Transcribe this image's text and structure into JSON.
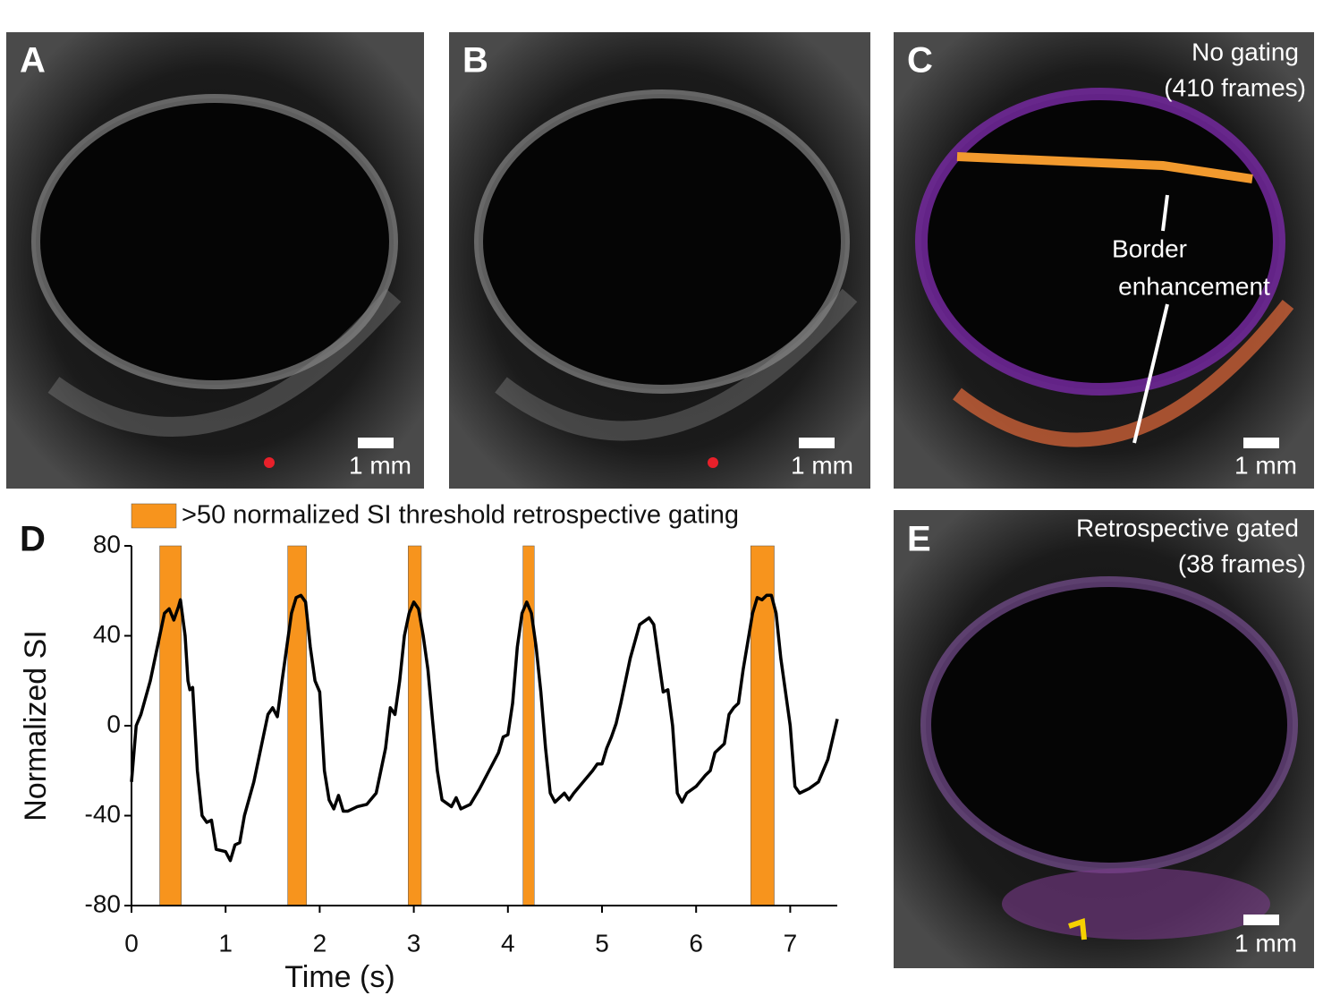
{
  "panels": [
    {
      "label": "A",
      "scale": "1 mm"
    },
    {
      "label": "B",
      "scale": "1 mm"
    },
    {
      "label": "C",
      "caption": [
        "No gating",
        "(410 frames)"
      ],
      "annotation": [
        "Border",
        "enhancement"
      ],
      "scale": "1 mm"
    },
    {
      "label": "E",
      "caption": [
        "Retrospective gated",
        "(38 frames)"
      ],
      "scale": "1 mm"
    }
  ],
  "chart_data": {
    "type": "line",
    "label": "D",
    "xlabel": "Time (s)",
    "ylabel": "Normalized SI",
    "xlim": [
      0,
      7.5
    ],
    "xticks": [
      0,
      1,
      2,
      3,
      4,
      5,
      6,
      7
    ],
    "ylim": [
      -80,
      80
    ],
    "yticks": [
      -80,
      -40,
      0,
      40,
      80
    ],
    "color": "#000000",
    "gating": {
      "name": ">50 normalized SI threshold retrospective gating",
      "color": "#f7941d",
      "starts": [
        0.3,
        1.66,
        2.94,
        4.16,
        6.58
      ],
      "ends": [
        0.53,
        1.86,
        3.08,
        4.28,
        6.83
      ]
    },
    "x": [
      0,
      0.05,
      0.1,
      0.2,
      0.3,
      0.35,
      0.4,
      0.45,
      0.5,
      0.52,
      0.57,
      0.6,
      0.62,
      0.65,
      0.7,
      0.75,
      0.8,
      0.85,
      0.9,
      1.0,
      1.05,
      1.1,
      1.15,
      1.2,
      1.3,
      1.4,
      1.45,
      1.5,
      1.55,
      1.6,
      1.7,
      1.75,
      1.8,
      1.85,
      1.9,
      1.95,
      2.0,
      2.05,
      2.1,
      2.15,
      2.2,
      2.25,
      2.3,
      2.4,
      2.5,
      2.6,
      2.7,
      2.75,
      2.8,
      2.85,
      2.9,
      2.95,
      3.0,
      3.05,
      3.1,
      3.15,
      3.2,
      3.25,
      3.3,
      3.4,
      3.45,
      3.5,
      3.6,
      3.7,
      3.8,
      3.9,
      3.95,
      4.0,
      4.05,
      4.1,
      4.15,
      4.2,
      4.25,
      4.3,
      4.35,
      4.4,
      4.45,
      4.5,
      4.6,
      4.65,
      4.7,
      4.8,
      4.9,
      4.95,
      5.0,
      5.05,
      5.1,
      5.15,
      5.2,
      5.3,
      5.4,
      5.5,
      5.55,
      5.6,
      5.65,
      5.7,
      5.75,
      5.8,
      5.85,
      5.9,
      6.0,
      6.1,
      6.15,
      6.2,
      6.3,
      6.35,
      6.4,
      6.45,
      6.5,
      6.6,
      6.65,
      6.7,
      6.75,
      6.8,
      6.85,
      6.9,
      6.95,
      7.0,
      7.05,
      7.1,
      7.2,
      7.3,
      7.4,
      7.5
    ],
    "values": [
      -25,
      0,
      5,
      20,
      40,
      50,
      52,
      47,
      53,
      56,
      40,
      20,
      16,
      17,
      -20,
      -40,
      -43,
      -42,
      -55,
      -56,
      -60,
      -53,
      -52,
      -40,
      -25,
      -5,
      5,
      8,
      4,
      20,
      50,
      57,
      58,
      55,
      35,
      20,
      15,
      -20,
      -33,
      -37,
      -31,
      -38,
      -38,
      -36,
      -35,
      -30,
      -10,
      8,
      5,
      20,
      40,
      50,
      55,
      52,
      40,
      25,
      2,
      -20,
      -33,
      -36,
      -32,
      -37,
      -35,
      -28,
      -20,
      -12,
      -5,
      -4,
      10,
      35,
      50,
      55,
      50,
      35,
      15,
      -10,
      -30,
      -34,
      -30,
      -33,
      -30,
      -25,
      -20,
      -17,
      -17,
      -10,
      -5,
      1,
      10,
      30,
      45,
      48,
      45,
      30,
      15,
      16,
      0,
      -30,
      -34,
      -30,
      -27,
      -22,
      -20,
      -12,
      -8,
      5,
      8,
      10,
      25,
      50,
      57,
      56,
      58,
      58,
      50,
      30,
      15,
      0,
      -27,
      -30,
      -28,
      -25,
      -15,
      3
    ]
  }
}
